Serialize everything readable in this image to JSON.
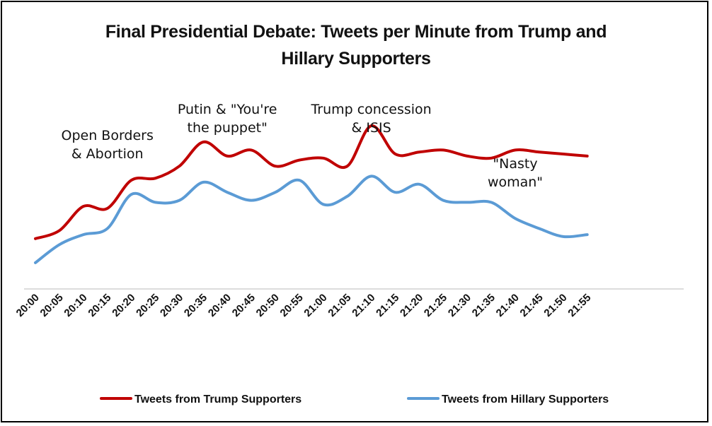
{
  "chart_data": {
    "type": "line",
    "title_line1": "Final Presidential Debate: Tweets per Minute from Trump and",
    "title_line2": "Hillary Supporters",
    "xlabel": "",
    "ylabel": "",
    "grid": false,
    "legend_position": "bottom",
    "categories": [
      "20:00",
      "20:05",
      "20:10",
      "20:15",
      "20:20",
      "20:25",
      "20:30",
      "20:35",
      "20:40",
      "20:45",
      "20:50",
      "20:55",
      "21:00",
      "21:05",
      "21:10",
      "21:15",
      "21:20",
      "21:25",
      "21:30",
      "21:35",
      "21:40",
      "21:45",
      "21:50",
      "21:55"
    ],
    "ylim": [
      0,
      100
    ],
    "series": [
      {
        "name": "Tweets from Trump Supporters",
        "color": "#c00000",
        "values": [
          25,
          29,
          41,
          40,
          54,
          55,
          61,
          73,
          66,
          69,
          61,
          64,
          65,
          61,
          81,
          67,
          68,
          69,
          66,
          65,
          69,
          68,
          67,
          66
        ]
      },
      {
        "name": "Tweets from Hillary Supporters",
        "color": "#5b9bd5",
        "values": [
          13,
          22,
          27,
          30,
          47,
          43,
          44,
          53,
          48,
          44,
          48,
          54,
          42,
          46,
          56,
          48,
          52,
          44,
          43,
          43,
          35,
          30,
          26,
          27
        ]
      }
    ],
    "annotations": [
      {
        "lines": [
          "Open Borders",
          "& Abortion"
        ],
        "x_category": "20:15",
        "y": 74
      },
      {
        "lines": [
          "Putin & \"You're",
          "the puppet\""
        ],
        "x_category": "20:40",
        "y": 87
      },
      {
        "lines": [
          "Trump concession",
          "& ISIS"
        ],
        "x_category": "21:10",
        "y": 87
      },
      {
        "lines": [
          "\"Nasty",
          "woman\""
        ],
        "x_category": "21:40",
        "y": 60
      }
    ]
  }
}
